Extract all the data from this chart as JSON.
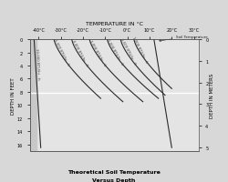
{
  "title_top": "TEMPERATURE IN °C",
  "title_bottom1": "Theoretical Soil Temperature",
  "title_bottom2": "Versus Depth",
  "ylabel_left": "DEPTH IN FEET",
  "ylabel_right": "DEPTH IN METERS",
  "x_ticks": [
    -40,
    -30,
    -20,
    -10,
    0,
    10,
    20,
    30
  ],
  "x_labels": [
    "-40°C",
    "-30°C",
    "-20°C",
    "-10°C",
    "0°C",
    "10°C",
    "20°C",
    "30°C"
  ],
  "xlim": [
    -44,
    32
  ],
  "ylim_feet": [
    0,
    17
  ],
  "depth_feet_ticks": [
    0,
    2,
    4,
    6,
    8,
    10,
    12,
    14,
    16
  ],
  "depth_meters_ticks": [
    0,
    1,
    2,
    3,
    4,
    5
  ],
  "depth_meters_positions_ft": [
    0,
    3.28,
    6.56,
    9.84,
    13.12,
    16.4
  ],
  "background_color": "#d8d8d8",
  "plot_bg": "#e4e4e4",
  "left_strip_color": "#c8c8c8",
  "annotation_label": "Soil Temperature",
  "zero_line_y_ft": 8.2,
  "curves": [
    {
      "label": "10,000 BTU/hr - ft",
      "x0": -42,
      "x1": -39,
      "d0": 0,
      "d1": 16.5,
      "power": 1.0
    },
    {
      "label": "5,000 BTU/hr - ft",
      "x0": -33,
      "x1": -12,
      "d0": 0,
      "d1": 9.0,
      "power": 1.4
    },
    {
      "label": "4,000 BTU/hr - ft",
      "x0": -25,
      "x1": -2,
      "d0": 0,
      "d1": 9.5,
      "power": 1.4
    },
    {
      "label": "3,000 BTU/hr - ft",
      "x0": -17,
      "x1": 7,
      "d0": 0,
      "d1": 9.5,
      "power": 1.4
    },
    {
      "label": "2,000 BTU/hr - ft",
      "x0": -9,
      "x1": 14,
      "d0": 0,
      "d1": 9.0,
      "power": 1.4
    },
    {
      "label": "1,500 BTU/hr - ft",
      "x0": -3,
      "x1": 17,
      "d0": 0,
      "d1": 8.5,
      "power": 1.4
    },
    {
      "label": "1,000 BTU/hr - ft",
      "x0": 3,
      "x1": 20,
      "d0": 0,
      "d1": 7.5,
      "power": 1.4
    },
    {
      "label": "Soil Temperature",
      "x0": 12,
      "x1": 20,
      "d0": 0,
      "d1": 16.5,
      "power": 1.0
    }
  ]
}
